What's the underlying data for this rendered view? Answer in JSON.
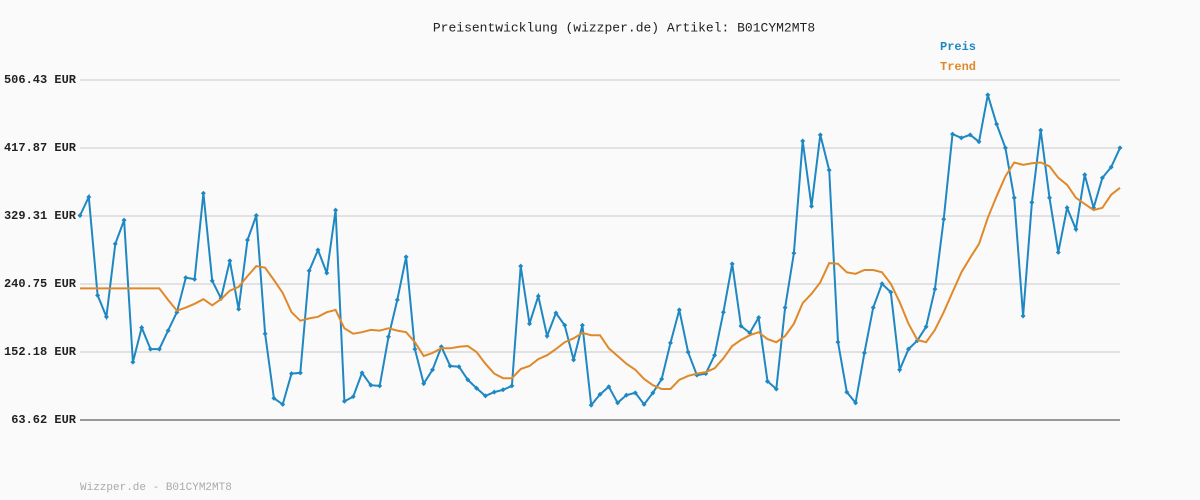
{
  "chart_data": {
    "type": "line",
    "title": "Preisentwicklung (wizzper.de) Artikel: B01CYM2MT8",
    "footer": "Wizzper.de - B01CYM2MT8",
    "categories": [
      null,
      null,
      null,
      null,
      null,
      null,
      null,
      null,
      null,
      null,
      null,
      null,
      null,
      null,
      null,
      null,
      null,
      null,
      null,
      null,
      null,
      null,
      null,
      null,
      null,
      null,
      null,
      null,
      null,
      null,
      null,
      null,
      null,
      null,
      null,
      null,
      null,
      null,
      null,
      null,
      null,
      null,
      null,
      null,
      null,
      null,
      null,
      null,
      null,
      null,
      null,
      null,
      null,
      null,
      null,
      null,
      null,
      null,
      null,
      null,
      null,
      null,
      null,
      null,
      null,
      null,
      null,
      null,
      null,
      null,
      null,
      null,
      null,
      null,
      null,
      null,
      null,
      null,
      null,
      null,
      null,
      null,
      null,
      null,
      null,
      null,
      null,
      null,
      null,
      null,
      null,
      null,
      null,
      null,
      null,
      null,
      null,
      null,
      null,
      null,
      null,
      null,
      null,
      null,
      null,
      null,
      null,
      null,
      null,
      null,
      null,
      null,
      null,
      null,
      null,
      null,
      null,
      null,
      null
    ],
    "series": [
      {
        "name": "Preis",
        "color": "#1f88c2",
        "markers": true,
        "values": [
          330,
          354,
          226,
          198,
          293,
          324,
          139,
          184,
          156,
          156,
          180,
          204,
          249,
          247,
          359,
          245,
          222,
          271,
          208,
          298,
          330,
          176,
          92,
          84,
          124,
          125,
          258,
          285,
          255,
          337,
          88,
          94,
          125,
          109,
          108,
          172,
          220,
          276,
          156,
          111,
          129,
          159,
          134,
          133,
          116,
          105,
          95,
          100,
          103,
          108,
          264,
          189,
          225,
          173,
          203,
          187,
          142,
          187,
          83,
          97,
          107,
          86,
          96,
          99,
          84,
          99,
          117,
          164,
          207,
          152,
          122,
          124,
          148,
          204,
          267,
          186,
          177,
          197,
          114,
          104,
          210,
          281,
          427,
          342,
          435,
          389,
          165,
          100,
          86,
          151,
          210,
          241,
          230,
          129,
          156,
          167,
          185,
          234,
          325,
          436,
          431,
          435,
          426,
          487,
          449,
          418,
          353,
          199,
          347,
          441,
          353,
          282,
          340,
          312,
          383,
          340,
          379,
          393,
          418
        ]
      },
      {
        "name": "Trend",
        "color": "#e0892a",
        "markers": false,
        "values": [
          235,
          235,
          235,
          235,
          235,
          235,
          235,
          235,
          235,
          235,
          220,
          206,
          210,
          215,
          221,
          213,
          221,
          232,
          237,
          251,
          264,
          262,
          246,
          229,
          204,
          193,
          196,
          198,
          204,
          207,
          183,
          176,
          178,
          181,
          180,
          183,
          180,
          178,
          165,
          147,
          151,
          157,
          157,
          159,
          160,
          152,
          137,
          124,
          118,
          118,
          130,
          134,
          143,
          148,
          156,
          165,
          170,
          177,
          174,
          174,
          157,
          147,
          137,
          129,
          117,
          109,
          104,
          104,
          116,
          121,
          124,
          126,
          131,
          144,
          160,
          168,
          174,
          178,
          169,
          165,
          173,
          189,
          216,
          228,
          243,
          268,
          267,
          256,
          254,
          259,
          259,
          256,
          241,
          217,
          189,
          168,
          165,
          181,
          204,
          230,
          256,
          275,
          293,
          327,
          355,
          381,
          399,
          396,
          398,
          399,
          394,
          379,
          370,
          353,
          345,
          337,
          340,
          357,
          366
        ]
      }
    ],
    "ylim": [
      63.62,
      506.43
    ],
    "yticks": [
      {
        "value": 63.62,
        "label": "63.62 EUR"
      },
      {
        "value": 152.18,
        "label": "152.18 EUR"
      },
      {
        "value": 240.75,
        "label": "240.75 EUR"
      },
      {
        "value": 329.31,
        "label": "329.31 EUR"
      },
      {
        "value": 417.87,
        "label": "417.87 EUR"
      },
      {
        "value": 506.43,
        "label": "506.43 EUR"
      }
    ],
    "grid": true,
    "legend": "top-right"
  }
}
